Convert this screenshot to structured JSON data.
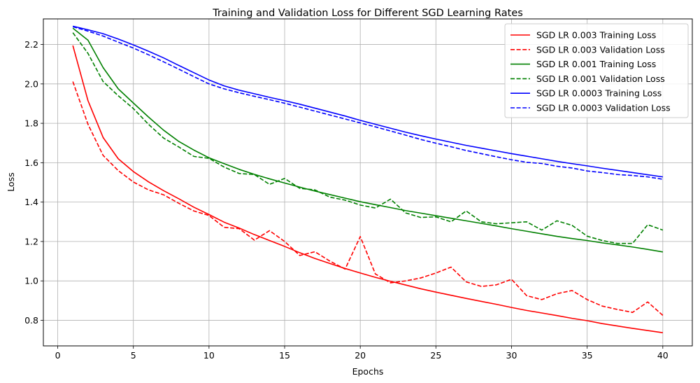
{
  "chart_data": {
    "type": "line",
    "title": "Training and Validation Loss for Different SGD Learning Rates",
    "xlabel": "Epochs",
    "ylabel": "Loss",
    "xlim": [
      -0.95,
      41.95
    ],
    "ylim": [
      0.67,
      2.33
    ],
    "xticks": [
      0,
      5,
      10,
      15,
      20,
      25,
      30,
      35,
      40
    ],
    "yticks": [
      0.8,
      1.0,
      1.2,
      1.4,
      1.6,
      1.8,
      2.0,
      2.2
    ],
    "grid": true,
    "legend_position": "top-right",
    "x": [
      1,
      2,
      3,
      4,
      5,
      6,
      7,
      8,
      9,
      10,
      11,
      12,
      13,
      14,
      15,
      16,
      17,
      18,
      19,
      20,
      21,
      22,
      23,
      24,
      25,
      26,
      27,
      28,
      29,
      30,
      31,
      32,
      33,
      34,
      35,
      36,
      37,
      38,
      39,
      40
    ],
    "series": [
      {
        "name": "SGD LR 0.003 Training Loss",
        "color": "#ff0000",
        "dash": "solid",
        "values": [
          2.195,
          1.915,
          1.728,
          1.62,
          1.555,
          1.503,
          1.458,
          1.417,
          1.374,
          1.337,
          1.298,
          1.268,
          1.235,
          1.205,
          1.175,
          1.143,
          1.114,
          1.088,
          1.063,
          1.04,
          1.018,
          0.998,
          0.979,
          0.96,
          0.943,
          0.927,
          0.911,
          0.896,
          0.881,
          0.865,
          0.85,
          0.837,
          0.824,
          0.81,
          0.798,
          0.783,
          0.771,
          0.759,
          0.748,
          0.737
        ]
      },
      {
        "name": "SGD LR 0.003 Validation Loss",
        "color": "#ff0000",
        "dash": "dashed",
        "values": [
          2.012,
          1.795,
          1.637,
          1.56,
          1.502,
          1.462,
          1.437,
          1.394,
          1.355,
          1.332,
          1.272,
          1.265,
          1.207,
          1.255,
          1.2,
          1.129,
          1.148,
          1.1,
          1.06,
          1.225,
          1.035,
          0.99,
          1.0,
          1.015,
          1.04,
          1.07,
          0.995,
          0.972,
          0.98,
          1.008,
          0.925,
          0.905,
          0.935,
          0.951,
          0.905,
          0.872,
          0.855,
          0.84,
          0.893,
          0.825
        ]
      },
      {
        "name": "SGD LR 0.001 Training Loss",
        "color": "#008000",
        "dash": "solid",
        "values": [
          2.283,
          2.222,
          2.083,
          1.975,
          1.903,
          1.832,
          1.765,
          1.708,
          1.664,
          1.625,
          1.595,
          1.566,
          1.541,
          1.518,
          1.497,
          1.476,
          1.456,
          1.438,
          1.42,
          1.402,
          1.387,
          1.372,
          1.357,
          1.344,
          1.331,
          1.318,
          1.305,
          1.292,
          1.279,
          1.265,
          1.252,
          1.239,
          1.226,
          1.215,
          1.205,
          1.193,
          1.183,
          1.172,
          1.16,
          1.147
        ]
      },
      {
        "name": "SGD LR 0.001 Validation Loss",
        "color": "#008000",
        "dash": "dashed",
        "values": [
          2.26,
          2.155,
          2.012,
          1.94,
          1.875,
          1.795,
          1.725,
          1.68,
          1.632,
          1.622,
          1.578,
          1.545,
          1.54,
          1.49,
          1.52,
          1.47,
          1.462,
          1.425,
          1.41,
          1.385,
          1.37,
          1.415,
          1.345,
          1.322,
          1.325,
          1.3,
          1.355,
          1.3,
          1.29,
          1.295,
          1.3,
          1.258,
          1.305,
          1.282,
          1.227,
          1.205,
          1.19,
          1.19,
          1.285,
          1.258
        ]
      },
      {
        "name": "SGD LR 0.0003 Training Loss",
        "color": "#0000ff",
        "dash": "solid",
        "values": [
          2.293,
          2.275,
          2.255,
          2.228,
          2.198,
          2.166,
          2.132,
          2.094,
          2.057,
          2.02,
          1.99,
          1.968,
          1.95,
          1.932,
          1.915,
          1.897,
          1.877,
          1.857,
          1.837,
          1.815,
          1.795,
          1.775,
          1.755,
          1.737,
          1.72,
          1.704,
          1.688,
          1.674,
          1.66,
          1.646,
          1.633,
          1.62,
          1.607,
          1.595,
          1.584,
          1.572,
          1.561,
          1.55,
          1.539,
          1.528
        ]
      },
      {
        "name": "SGD LR 0.0003 Validation Loss",
        "color": "#0000ff",
        "dash": "dashed",
        "values": [
          2.29,
          2.268,
          2.243,
          2.212,
          2.182,
          2.148,
          2.112,
          2.075,
          2.037,
          2.0,
          1.975,
          1.955,
          1.937,
          1.92,
          1.902,
          1.882,
          1.862,
          1.842,
          1.822,
          1.802,
          1.782,
          1.761,
          1.74,
          1.718,
          1.699,
          1.681,
          1.662,
          1.646,
          1.63,
          1.615,
          1.602,
          1.596,
          1.582,
          1.573,
          1.558,
          1.55,
          1.54,
          1.535,
          1.528,
          1.516
        ]
      }
    ]
  }
}
